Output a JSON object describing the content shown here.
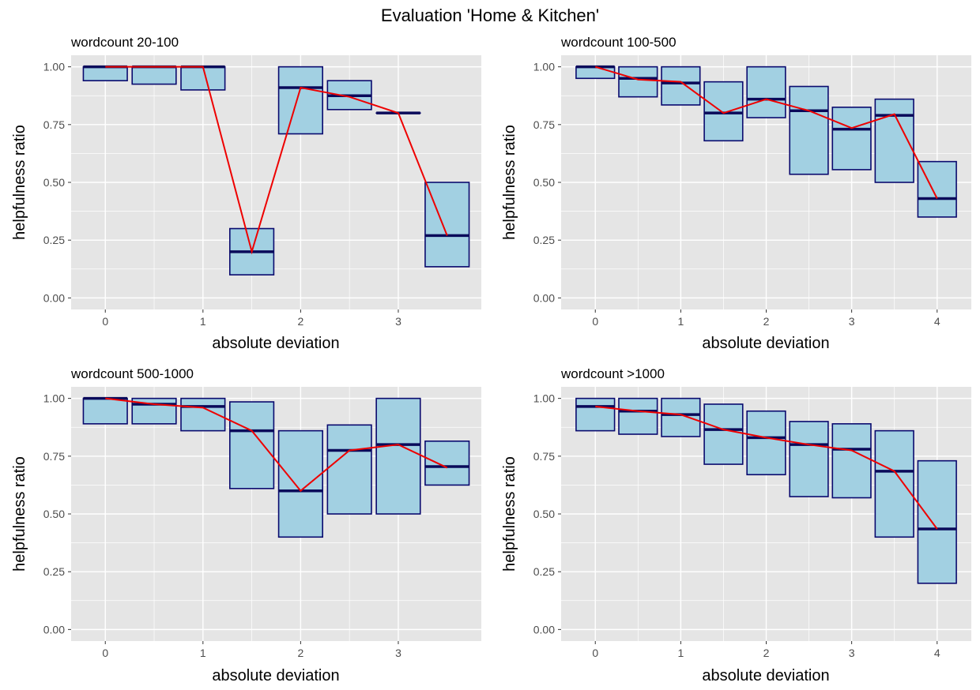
{
  "figure": {
    "title": "Evaluation 'Home & Kitchen'",
    "colors": {
      "panel_bg": "#e5e5e5",
      "grid": "#ffffff",
      "box_fill": "#a2d0e2",
      "box_stroke": "#0a0a6e",
      "median": "#0a0a5a",
      "trend_line": "#ee0000",
      "tick_text": "#4d4d4d"
    }
  },
  "chart_data": [
    {
      "type": "box",
      "title": "wordcount 20-100",
      "xlabel": "absolute deviation",
      "ylabel": "helpfulness ratio",
      "xlim": [
        -0.35,
        3.85
      ],
      "ylim": [
        -0.05,
        1.05
      ],
      "xticks": [
        0,
        1,
        2,
        3
      ],
      "yticks": [
        0.0,
        0.25,
        0.5,
        0.75,
        1.0
      ],
      "ytick_labels": [
        "0.00",
        "0.25",
        "0.50",
        "0.75",
        "1.00"
      ],
      "grid": true,
      "boxes": [
        {
          "x": 0.0,
          "q1": 0.94,
          "median": 1.0,
          "q3": 1.0
        },
        {
          "x": 0.5,
          "q1": 0.925,
          "median": 1.0,
          "q3": 1.0
        },
        {
          "x": 1.0,
          "q1": 0.9,
          "median": 1.0,
          "q3": 1.0
        },
        {
          "x": 1.5,
          "q1": 0.1,
          "median": 0.2,
          "q3": 0.3
        },
        {
          "x": 2.0,
          "q1": 0.71,
          "median": 0.91,
          "q3": 1.0
        },
        {
          "x": 2.5,
          "q1": 0.815,
          "median": 0.875,
          "q3": 0.94
        },
        {
          "x": 3.0,
          "q1": 0.8,
          "median": 0.8,
          "q3": 0.8
        },
        {
          "x": 3.5,
          "q1": 0.135,
          "median": 0.27,
          "q3": 0.5
        }
      ],
      "line": {
        "x": [
          0,
          0.5,
          1.0,
          1.5,
          2.0,
          2.5,
          3.0,
          3.5
        ],
        "y": [
          1.0,
          1.0,
          1.0,
          0.2,
          0.91,
          0.87,
          0.8,
          0.27
        ]
      }
    },
    {
      "type": "box",
      "title": "wordcount 100-500",
      "xlabel": "absolute deviation",
      "ylabel": "helpfulness ratio",
      "xlim": [
        -0.4,
        4.4
      ],
      "ylim": [
        -0.05,
        1.05
      ],
      "xticks": [
        0,
        1,
        2,
        3,
        4
      ],
      "yticks": [
        0.0,
        0.25,
        0.5,
        0.75,
        1.0
      ],
      "ytick_labels": [
        "0.00",
        "0.25",
        "0.50",
        "0.75",
        "1.00"
      ],
      "grid": true,
      "boxes": [
        {
          "x": 0.0,
          "q1": 0.95,
          "median": 1.0,
          "q3": 1.0
        },
        {
          "x": 0.5,
          "q1": 0.87,
          "median": 0.95,
          "q3": 1.0
        },
        {
          "x": 1.0,
          "q1": 0.835,
          "median": 0.93,
          "q3": 1.0
        },
        {
          "x": 1.5,
          "q1": 0.68,
          "median": 0.8,
          "q3": 0.935
        },
        {
          "x": 2.0,
          "q1": 0.78,
          "median": 0.86,
          "q3": 1.0
        },
        {
          "x": 2.5,
          "q1": 0.535,
          "median": 0.81,
          "q3": 0.915
        },
        {
          "x": 3.0,
          "q1": 0.555,
          "median": 0.73,
          "q3": 0.825
        },
        {
          "x": 3.5,
          "q1": 0.5,
          "median": 0.79,
          "q3": 0.86
        },
        {
          "x": 4.0,
          "q1": 0.35,
          "median": 0.43,
          "q3": 0.59
        }
      ],
      "line": {
        "x": [
          0,
          0.5,
          1.0,
          1.5,
          2.0,
          2.5,
          3.0,
          3.5,
          4.0
        ],
        "y": [
          1.0,
          0.945,
          0.935,
          0.8,
          0.86,
          0.81,
          0.735,
          0.795,
          0.43
        ]
      }
    },
    {
      "type": "box",
      "title": "wordcount 500-1000",
      "xlabel": "absolute deviation",
      "ylabel": "helpfulness ratio",
      "xlim": [
        -0.35,
        3.85
      ],
      "ylim": [
        -0.05,
        1.05
      ],
      "xticks": [
        0,
        1,
        2,
        3
      ],
      "yticks": [
        0.0,
        0.25,
        0.5,
        0.75,
        1.0
      ],
      "ytick_labels": [
        "0.00",
        "0.25",
        "0.50",
        "0.75",
        "1.00"
      ],
      "grid": true,
      "boxes": [
        {
          "x": 0.0,
          "q1": 0.89,
          "median": 1.0,
          "q3": 1.0
        },
        {
          "x": 0.5,
          "q1": 0.89,
          "median": 0.975,
          "q3": 1.0
        },
        {
          "x": 1.0,
          "q1": 0.86,
          "median": 0.965,
          "q3": 1.0
        },
        {
          "x": 1.5,
          "q1": 0.61,
          "median": 0.86,
          "q3": 0.985
        },
        {
          "x": 2.0,
          "q1": 0.4,
          "median": 0.6,
          "q3": 0.86
        },
        {
          "x": 2.5,
          "q1": 0.5,
          "median": 0.775,
          "q3": 0.885
        },
        {
          "x": 3.0,
          "q1": 0.5,
          "median": 0.8,
          "q3": 1.0
        },
        {
          "x": 3.5,
          "q1": 0.625,
          "median": 0.705,
          "q3": 0.815
        }
      ],
      "line": {
        "x": [
          0,
          0.5,
          1.0,
          1.5,
          2.0,
          2.5,
          3.0,
          3.5
        ],
        "y": [
          1.0,
          0.975,
          0.96,
          0.86,
          0.6,
          0.775,
          0.8,
          0.7
        ]
      }
    },
    {
      "type": "box",
      "title": "wordcount >1000",
      "xlabel": "absolute deviation",
      "ylabel": "helpfulness ratio",
      "xlim": [
        -0.4,
        4.4
      ],
      "ylim": [
        -0.05,
        1.05
      ],
      "xticks": [
        0,
        1,
        2,
        3,
        4
      ],
      "yticks": [
        0.0,
        0.25,
        0.5,
        0.75,
        1.0
      ],
      "ytick_labels": [
        "0.00",
        "0.25",
        "0.50",
        "0.75",
        "1.00"
      ],
      "grid": true,
      "boxes": [
        {
          "x": 0.0,
          "q1": 0.86,
          "median": 0.965,
          "q3": 1.0
        },
        {
          "x": 0.5,
          "q1": 0.845,
          "median": 0.945,
          "q3": 1.0
        },
        {
          "x": 1.0,
          "q1": 0.835,
          "median": 0.93,
          "q3": 1.0
        },
        {
          "x": 1.5,
          "q1": 0.715,
          "median": 0.865,
          "q3": 0.975
        },
        {
          "x": 2.0,
          "q1": 0.67,
          "median": 0.83,
          "q3": 0.945
        },
        {
          "x": 2.5,
          "q1": 0.575,
          "median": 0.8,
          "q3": 0.9
        },
        {
          "x": 3.0,
          "q1": 0.57,
          "median": 0.78,
          "q3": 0.89
        },
        {
          "x": 3.5,
          "q1": 0.4,
          "median": 0.685,
          "q3": 0.86
        },
        {
          "x": 4.0,
          "q1": 0.2,
          "median": 0.435,
          "q3": 0.73
        }
      ],
      "line": {
        "x": [
          0,
          0.5,
          1.0,
          1.5,
          2.0,
          2.5,
          3.0,
          3.5,
          4.0
        ],
        "y": [
          0.965,
          0.945,
          0.93,
          0.865,
          0.83,
          0.8,
          0.775,
          0.685,
          0.435
        ]
      }
    }
  ]
}
